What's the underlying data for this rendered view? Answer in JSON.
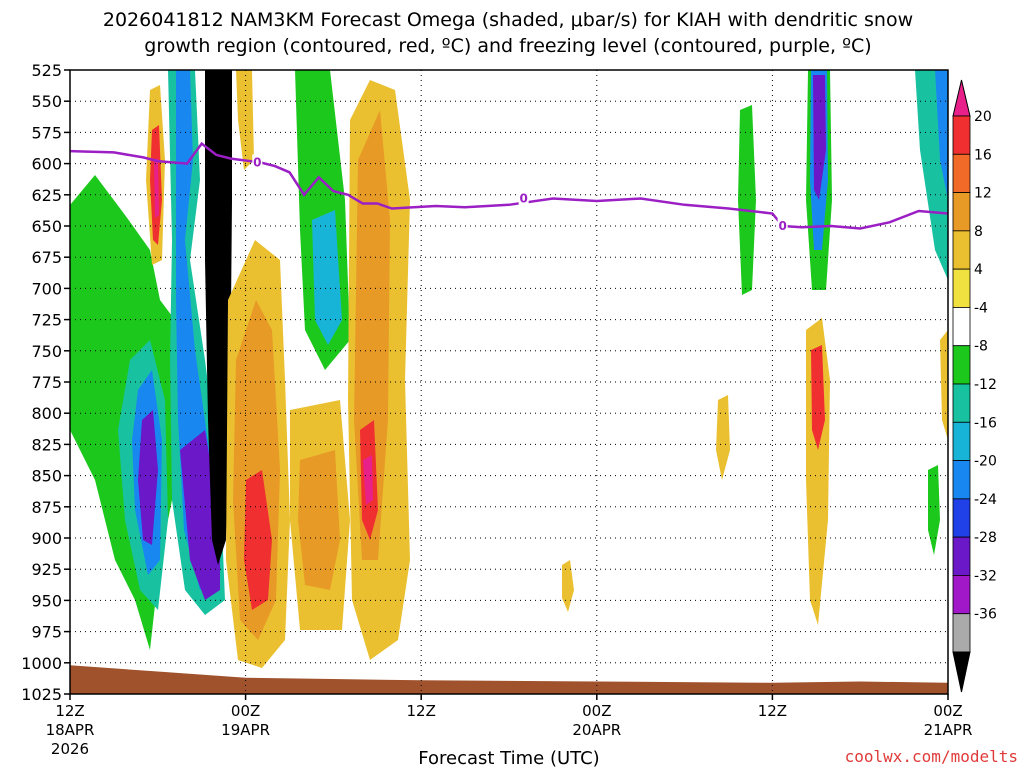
{
  "chart_data": {
    "type": "time-height cross section (filled contour)",
    "title_line1": "2026041812 NAM3KM Forecast Omega (shaded, μbar/s) for KIAH with dendritic snow",
    "title_line2": "growth region (contoured, red, ºC) and freezing level (contoured, purple, ºC)",
    "station": "KIAH",
    "model": "NAM3KM",
    "init": "2026041812",
    "xlabel": "Forecast Time (UTC)",
    "x_ticks": [
      {
        "hour": 0,
        "label": "12Z",
        "sub1": "18APR",
        "sub2": "2026"
      },
      {
        "hour": 12,
        "label": "00Z",
        "sub1": "19APR",
        "sub2": ""
      },
      {
        "hour": 24,
        "label": "12Z",
        "sub1": "",
        "sub2": ""
      },
      {
        "hour": 36,
        "label": "00Z",
        "sub1": "20APR",
        "sub2": ""
      },
      {
        "hour": 48,
        "label": "12Z",
        "sub1": "",
        "sub2": ""
      },
      {
        "hour": 60,
        "label": "00Z",
        "sub1": "21APR",
        "sub2": ""
      }
    ],
    "x_range_hours": [
      0,
      60
    ],
    "y_ticks_hpa": [
      525,
      550,
      575,
      600,
      625,
      650,
      675,
      700,
      725,
      750,
      775,
      800,
      825,
      850,
      875,
      900,
      925,
      950,
      975,
      1000,
      1025
    ],
    "y_range_hpa": [
      525,
      1025
    ],
    "colorbar": {
      "labels": [
        "20",
        "16",
        "12",
        "8",
        "4",
        "-4",
        "-8",
        "-12",
        "-16",
        "-20",
        "-24",
        "-28",
        "-32",
        "-36"
      ],
      "bands": [
        {
          "range": ">20",
          "color": "#e8208a"
        },
        {
          "range": "16 to 20",
          "color": "#f03030"
        },
        {
          "range": "12 to 16",
          "color": "#f26a28"
        },
        {
          "range": "8 to 12",
          "color": "#e89a26"
        },
        {
          "range": "4 to 8",
          "color": "#eac030"
        },
        {
          "range": "0 to 4",
          "color": "#f0e040"
        },
        {
          "range": "-4 to 4",
          "color": "#ffffff"
        },
        {
          "range": "-8 to -4",
          "color": "#1cc81c"
        },
        {
          "range": "-12 to -8",
          "color": "#18c2a0"
        },
        {
          "range": "-16 to -12",
          "color": "#18b4d8"
        },
        {
          "range": "-20 to -16",
          "color": "#1888f0"
        },
        {
          "range": "-24 to -20",
          "color": "#2040e8"
        },
        {
          "range": "-28 to -24",
          "color": "#6a18c8"
        },
        {
          "range": "-32 to -28",
          "color": "#a018c8"
        },
        {
          "range": "-36 to -32",
          "color": "#aaaaaa"
        },
        {
          "range": "<-36",
          "color": "#000000"
        }
      ]
    },
    "freezing_level": {
      "color": "#9b1fc4",
      "label": "0",
      "points": [
        [
          0,
          590
        ],
        [
          3,
          591
        ],
        [
          5,
          595
        ],
        [
          6,
          598
        ],
        [
          8,
          600
        ],
        [
          9,
          584
        ],
        [
          10,
          593
        ],
        [
          11,
          596
        ],
        [
          13,
          599
        ],
        [
          14,
          602
        ],
        [
          15,
          607
        ],
        [
          16,
          625
        ],
        [
          17,
          611
        ],
        [
          18,
          622
        ],
        [
          19,
          625
        ],
        [
          20,
          632
        ],
        [
          21,
          632
        ],
        [
          22,
          636
        ],
        [
          25,
          634
        ],
        [
          27,
          635
        ],
        [
          30,
          633
        ],
        [
          33,
          628
        ],
        [
          36,
          630
        ],
        [
          39,
          628
        ],
        [
          42,
          633
        ],
        [
          45,
          636
        ],
        [
          48,
          640
        ],
        [
          48.7,
          650
        ],
        [
          50,
          651
        ],
        [
          52,
          650
        ],
        [
          54,
          652
        ],
        [
          56,
          647
        ],
        [
          58,
          638
        ],
        [
          60,
          640
        ]
      ],
      "label_positions": [
        [
          12.8,
          599
        ],
        [
          31,
          628
        ],
        [
          48.7,
          650
        ]
      ]
    },
    "ground_surface": {
      "color": "#a0522d",
      "points": [
        [
          0,
          1002
        ],
        [
          6,
          1007
        ],
        [
          12,
          1012
        ],
        [
          18,
          1013
        ],
        [
          24,
          1014
        ],
        [
          36,
          1015
        ],
        [
          48,
          1016
        ],
        [
          54,
          1015
        ],
        [
          60,
          1016
        ]
      ]
    },
    "credit": "coolwx.com/modelts"
  }
}
